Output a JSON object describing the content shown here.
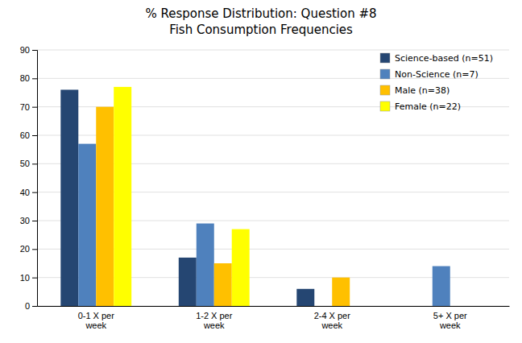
{
  "chart_data": {
    "type": "bar",
    "title": "% Response Distribution: Question #8",
    "subtitle": "Fish Consumption Frequencies",
    "categories": [
      "0-1 X per\nweek",
      "1-2 X per\nweek",
      "2-4 X per\nweek",
      "5+ X per\nweek"
    ],
    "series": [
      {
        "name": "Science-based (n=51)",
        "color": "#254672",
        "values": [
          76,
          17,
          6,
          0
        ]
      },
      {
        "name": "Non-Science (n=7)",
        "color": "#4F81BD",
        "values": [
          57,
          29,
          0,
          14
        ]
      },
      {
        "name": "Male (n=38)",
        "color": "#FFC000",
        "values": [
          70,
          15,
          10,
          0
        ]
      },
      {
        "name": "Female (n=22)",
        "color": "#FFFF00",
        "values": [
          77,
          27,
          0,
          0
        ]
      }
    ],
    "ylim": [
      0,
      90
    ],
    "yticks": [
      0,
      10,
      20,
      30,
      40,
      50,
      60,
      70,
      80,
      90
    ],
    "grid": true,
    "legend": "upper right"
  }
}
